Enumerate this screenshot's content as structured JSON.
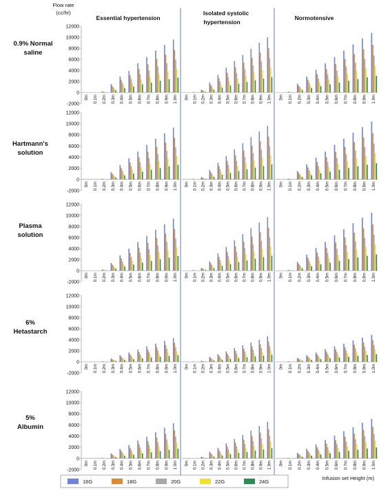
{
  "figure": {
    "y_axis_label_line1": "Flow rate",
    "y_axis_label_line2": "(cc/hr)",
    "x_axis_label": "Infusion set Height (m)",
    "columns": [
      "Essential hypertension",
      "Isolated systolic",
      "hypertension",
      "Normotensive"
    ],
    "rows": [
      {
        "line1": "0.9% Normal",
        "line2": "saline"
      },
      {
        "line1": "Hartmann's",
        "line2": "solution"
      },
      {
        "line1": "Plasma",
        "line2": "solution"
      },
      {
        "line1": "6%",
        "line2": "Hetastarch"
      },
      {
        "line1": "5%",
        "line2": "Albumin"
      }
    ]
  },
  "chart_data": {
    "type": "bar",
    "categories": [
      "0m",
      "0.1m",
      "0.2m",
      "0.3m",
      "0.4m",
      "0.5m",
      "0.6m",
      "0.7m",
      "0.8m",
      "0.9m",
      "1.0m"
    ],
    "ylim": [
      -2000,
      12000
    ],
    "yticks": [
      -2000,
      0,
      2000,
      4000,
      6000,
      8000,
      10000,
      12000
    ],
    "series_names": [
      "16G",
      "18G",
      "20G",
      "22G",
      "24G"
    ],
    "series_colors": [
      "#7083d6",
      "#d88c3a",
      "#a9a9a9",
      "#f0e03a",
      "#2e8b57"
    ],
    "series_ratios": [
      1.0,
      0.8,
      0.62,
      0.45,
      0.28
    ],
    "panels": [
      {
        "row": "0.9% Normal saline",
        "column": "Essential hypertension",
        "base_16G": [
          0,
          0,
          200,
          1500,
          2900,
          3900,
          5300,
          6400,
          7600,
          8600,
          9600
        ]
      },
      {
        "row": "0.9% Normal saline",
        "column": "Isolated systolic hypertension",
        "base_16G": [
          0,
          100,
          500,
          1800,
          3200,
          4500,
          5700,
          6800,
          7900,
          9000,
          10000
        ]
      },
      {
        "row": "0.9% Normal saline",
        "column": "Normotensive",
        "base_16G": [
          0,
          150,
          1600,
          2900,
          4100,
          5300,
          6400,
          7600,
          8700,
          9800,
          10800
        ]
      },
      {
        "row": "Hartmann's solution",
        "column": "Essential hypertension",
        "base_16G": [
          0,
          0,
          100,
          1300,
          2600,
          3800,
          5000,
          6200,
          7300,
          8300,
          9300
        ]
      },
      {
        "row": "Hartmann's solution",
        "column": "Isolated systolic hypertension",
        "base_16G": [
          0,
          100,
          400,
          1700,
          3000,
          4200,
          5400,
          6500,
          7600,
          8600,
          9600
        ]
      },
      {
        "row": "Hartmann's solution",
        "column": "Normotensive",
        "base_16G": [
          0,
          150,
          1500,
          2700,
          3900,
          5000,
          6200,
          7300,
          8400,
          9400,
          10400
        ]
      },
      {
        "row": "Plasma solution",
        "column": "Essential hypertension",
        "base_16G": [
          0,
          0,
          200,
          1400,
          2800,
          4000,
          5200,
          6300,
          7400,
          8400,
          9400
        ]
      },
      {
        "row": "Plasma solution",
        "column": "Isolated systolic hypertension",
        "base_16G": [
          0,
          100,
          500,
          1700,
          3100,
          4300,
          5500,
          6600,
          7700,
          8700,
          9700
        ]
      },
      {
        "row": "Plasma solution",
        "column": "Normotensive",
        "base_16G": [
          0,
          150,
          1600,
          2900,
          4100,
          5200,
          6400,
          7500,
          8600,
          9600,
          10500
        ]
      },
      {
        "row": "6% Hetastarch",
        "column": "Essential hypertension",
        "base_16G": [
          0,
          0,
          100,
          600,
          1200,
          1700,
          2200,
          2800,
          3300,
          3800,
          4300
        ]
      },
      {
        "row": "6% Hetastarch",
        "column": "Isolated systolic hypertension",
        "base_16G": [
          0,
          50,
          200,
          900,
          1400,
          1900,
          2500,
          3000,
          3500,
          4000,
          4600
        ]
      },
      {
        "row": "6% Hetastarch",
        "column": "Normotensive",
        "base_16G": [
          0,
          100,
          700,
          1200,
          1700,
          2300,
          2800,
          3300,
          3900,
          4400,
          4900
        ]
      },
      {
        "row": "5% Albumin",
        "column": "Essential hypertension",
        "base_16G": [
          0,
          0,
          100,
          900,
          1700,
          2400,
          3200,
          3900,
          4700,
          5500,
          6300
        ]
      },
      {
        "row": "5% Albumin",
        "column": "Isolated systolic hypertension",
        "base_16G": [
          0,
          50,
          300,
          1200,
          1900,
          2700,
          3500,
          4200,
          5000,
          5800,
          6600
        ]
      },
      {
        "row": "5% Albumin",
        "column": "Normotensive",
        "base_16G": [
          0,
          100,
          1000,
          1700,
          2500,
          3300,
          4100,
          4900,
          5600,
          6400,
          7100
        ]
      }
    ],
    "legend_position": "bottom-left",
    "grid": false
  }
}
